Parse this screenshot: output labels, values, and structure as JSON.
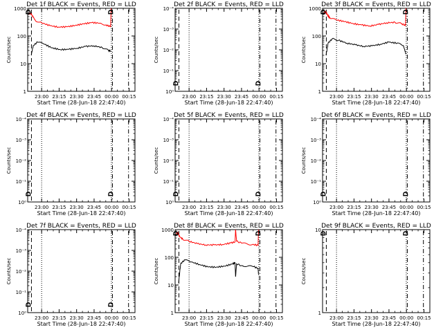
{
  "chart_data": [
    {
      "type": "line",
      "title": "Det 1f BLACK = Events, RED = LLD",
      "ylabel": "Counts/sec",
      "xlabel": "Start Time (28-Jun-18 22:47:40)",
      "y_scale": "log",
      "ytick_labels": [
        "1",
        "10",
        "100",
        "1000"
      ],
      "ytick_values": [
        1,
        10,
        100,
        1000
      ],
      "xtick_labels": [
        "23:00",
        "23:15",
        "23:30",
        "23:45",
        "00:00",
        "00:15"
      ],
      "has_data": true,
      "markers": [
        {
          "label": "D",
          "side": "top",
          "pos": 0.0
        },
        {
          "label": "D",
          "side": "top",
          "pos": 0.78
        }
      ],
      "vlines": [
        {
          "style": "dash",
          "pos": 0.035
        },
        {
          "style": "dotted",
          "pos": 0.13
        },
        {
          "style": "dotted",
          "pos": 0.78
        },
        {
          "style": "dashdot",
          "pos": 0.79
        },
        {
          "style": "dashdot",
          "pos": 0.94
        }
      ],
      "series": [
        {
          "name": "LLD",
          "color": "#ff0000",
          "points": [
            [
              0.0,
              600
            ],
            [
              0.01,
              700
            ],
            [
              0.03,
              560
            ],
            [
              0.06,
              360
            ],
            [
              0.12,
              300
            ],
            [
              0.2,
              235
            ],
            [
              0.28,
              210
            ],
            [
              0.36,
              215
            ],
            [
              0.44,
              240
            ],
            [
              0.52,
              275
            ],
            [
              0.6,
              305
            ],
            [
              0.68,
              290
            ],
            [
              0.74,
              250
            ],
            [
              0.78,
              215
            ],
            [
              0.785,
              1000
            ]
          ]
        },
        {
          "name": "Events",
          "color": "#000000",
          "points": [
            [
              0.02,
              20
            ],
            [
              0.04,
              45
            ],
            [
              0.08,
              60
            ],
            [
              0.14,
              52
            ],
            [
              0.22,
              37
            ],
            [
              0.3,
              32
            ],
            [
              0.38,
              33
            ],
            [
              0.46,
              36
            ],
            [
              0.54,
              42
            ],
            [
              0.62,
              44
            ],
            [
              0.7,
              38
            ],
            [
              0.76,
              30
            ],
            [
              0.785,
              28
            ]
          ]
        }
      ]
    },
    {
      "type": "line",
      "title": "Det 2f BLACK = Events, RED = LLD",
      "ylabel": "Counts/sec",
      "xlabel": "Start Time (28-Jun-18 22:47:40)",
      "y_scale": "log",
      "ytick_labels": [
        "10⁰",
        "10⁻¹",
        "10⁻²",
        "10⁻³",
        "10⁻⁴"
      ],
      "xtick_labels": [
        "23:00",
        "23:15",
        "23:30",
        "23:45",
        "00:00",
        "00:15"
      ],
      "has_data": false,
      "markers": [
        {
          "label": "D",
          "side": "bottom",
          "pos": 0.0
        },
        {
          "label": "D",
          "side": "bottom",
          "pos": 0.78
        }
      ],
      "vlines": [
        {
          "style": "dash",
          "pos": 0.035
        },
        {
          "style": "dotted",
          "pos": 0.13
        },
        {
          "style": "dotted",
          "pos": 0.78
        },
        {
          "style": "dashdot",
          "pos": 0.79
        },
        {
          "style": "dashdot",
          "pos": 0.94
        }
      ],
      "series": []
    },
    {
      "type": "line",
      "title": "Det 3f BLACK = Events, RED = LLD",
      "ylabel": "Counts/sec",
      "xlabel": "Start Time (28-Jun-18 22:47:40)",
      "y_scale": "log",
      "ytick_labels": [
        "1",
        "10",
        "100",
        "1000"
      ],
      "ytick_values": [
        1,
        10,
        100,
        1000
      ],
      "xtick_labels": [
        "23:00",
        "23:15",
        "23:30",
        "23:45",
        "00:00",
        "00:15"
      ],
      "has_data": true,
      "markers": [
        {
          "label": "D",
          "side": "top",
          "pos": 0.0
        },
        {
          "label": "D",
          "side": "top",
          "pos": 0.78
        }
      ],
      "vlines": [
        {
          "style": "dash",
          "pos": 0.035
        },
        {
          "style": "dotted",
          "pos": 0.13
        },
        {
          "style": "dotted",
          "pos": 0.78
        },
        {
          "style": "dashdot",
          "pos": 0.79
        },
        {
          "style": "dashdot",
          "pos": 0.94
        }
      ],
      "series": [
        {
          "name": "LLD",
          "color": "#ff0000",
          "points": [
            [
              0.0,
              650
            ],
            [
              0.01,
              800
            ],
            [
              0.03,
              600
            ],
            [
              0.06,
              430
            ],
            [
              0.12,
              380
            ],
            [
              0.2,
              330
            ],
            [
              0.28,
              280
            ],
            [
              0.36,
              250
            ],
            [
              0.44,
              230
            ],
            [
              0.52,
              260
            ],
            [
              0.6,
              300
            ],
            [
              0.68,
              310
            ],
            [
              0.74,
              280
            ],
            [
              0.78,
              240
            ],
            [
              0.785,
              1000
            ]
          ]
        },
        {
          "name": "Events",
          "color": "#000000",
          "points": [
            [
              0.02,
              20
            ],
            [
              0.04,
              55
            ],
            [
              0.08,
              80
            ],
            [
              0.14,
              70
            ],
            [
              0.22,
              55
            ],
            [
              0.3,
              48
            ],
            [
              0.38,
              42
            ],
            [
              0.46,
              44
            ],
            [
              0.54,
              50
            ],
            [
              0.62,
              60
            ],
            [
              0.7,
              55
            ],
            [
              0.76,
              45
            ],
            [
              0.785,
              22
            ]
          ]
        }
      ]
    },
    {
      "type": "line",
      "title": "Det 4f BLACK = Events, RED = LLD",
      "ylabel": "Counts/sec",
      "xlabel": "Start Time (28-Jun-18 22:47:40)",
      "y_scale": "log",
      "ytick_labels": [
        "10⁰",
        "10⁻¹",
        "10⁻²",
        "10⁻³",
        "10⁻⁴"
      ],
      "xtick_labels": [
        "23:00",
        "23:15",
        "23:30",
        "23:45",
        "00:00",
        "00:15"
      ],
      "has_data": false,
      "markers": [
        {
          "label": "D",
          "side": "bottom",
          "pos": 0.0
        },
        {
          "label": "D",
          "side": "bottom",
          "pos": 0.78
        }
      ],
      "vlines": [
        {
          "style": "dash",
          "pos": 0.035
        },
        {
          "style": "dotted",
          "pos": 0.13
        },
        {
          "style": "dotted",
          "pos": 0.78
        },
        {
          "style": "dashdot",
          "pos": 0.79
        },
        {
          "style": "dashdot",
          "pos": 0.94
        }
      ],
      "series": []
    },
    {
      "type": "line",
      "title": "Det 5f BLACK = Events, RED = LLD",
      "ylabel": "Counts/sec",
      "xlabel": "Start Time (28-Jun-18 22:47:40)",
      "y_scale": "log",
      "ytick_labels": [
        "10⁰",
        "10⁻¹",
        "10⁻²",
        "10⁻³",
        "10⁻⁴"
      ],
      "xtick_labels": [
        "23:00",
        "23:15",
        "23:30",
        "23:45",
        "00:00",
        "00:15"
      ],
      "has_data": false,
      "markers": [
        {
          "label": "D",
          "side": "bottom",
          "pos": 0.0
        },
        {
          "label": "D",
          "side": "bottom",
          "pos": 0.78
        }
      ],
      "vlines": [
        {
          "style": "dash",
          "pos": 0.035
        },
        {
          "style": "dotted",
          "pos": 0.13
        },
        {
          "style": "dotted",
          "pos": 0.78
        },
        {
          "style": "dashdot",
          "pos": 0.79
        },
        {
          "style": "dashdot",
          "pos": 0.94
        }
      ],
      "series": []
    },
    {
      "type": "line",
      "title": "Det 6f BLACK = Events, RED = LLD",
      "ylabel": "Counts/sec",
      "xlabel": "Start Time (28-Jun-18 22:47:40)",
      "y_scale": "log",
      "ytick_labels": [
        "10⁰",
        "10⁻¹",
        "10⁻²",
        "10⁻³",
        "10⁻⁴"
      ],
      "xtick_labels": [
        "23:00",
        "23:15",
        "23:30",
        "23:45",
        "00:00",
        "00:15"
      ],
      "has_data": false,
      "markers": [
        {
          "label": "D",
          "side": "bottom",
          "pos": 0.0
        },
        {
          "label": "D",
          "side": "bottom",
          "pos": 0.78
        }
      ],
      "vlines": [
        {
          "style": "dash",
          "pos": 0.035
        },
        {
          "style": "dotted",
          "pos": 0.13
        },
        {
          "style": "dotted",
          "pos": 0.78
        },
        {
          "style": "dashdot",
          "pos": 0.79
        },
        {
          "style": "dashdot",
          "pos": 0.94
        }
      ],
      "series": []
    },
    {
      "type": "line",
      "title": "Det 7f BLACK = Events, RED = LLD",
      "ylabel": "Counts/sec",
      "xlabel": "Start Time (28-Jun-18 22:47:40)",
      "y_scale": "log",
      "ytick_labels": [
        "10⁰",
        "10⁻¹",
        "10⁻²",
        "10⁻³",
        "10⁻⁴"
      ],
      "xtick_labels": [
        "23:00",
        "23:15",
        "23:30",
        "23:45",
        "00:00",
        "00:15"
      ],
      "has_data": false,
      "markers": [
        {
          "label": "D",
          "side": "bottom",
          "pos": 0.0
        },
        {
          "label": "D",
          "side": "bottom",
          "pos": 0.78
        }
      ],
      "vlines": [
        {
          "style": "dash",
          "pos": 0.035
        },
        {
          "style": "dotted",
          "pos": 0.13
        },
        {
          "style": "dotted",
          "pos": 0.78
        },
        {
          "style": "dashdot",
          "pos": 0.79
        },
        {
          "style": "dashdot",
          "pos": 0.94
        }
      ],
      "series": []
    },
    {
      "type": "line",
      "title": "Det 8f BLACK = Events, RED = LLD",
      "ylabel": "Counts/sec",
      "xlabel": "Start Time (28-Jun-18 22:47:40)",
      "y_scale": "log",
      "ytick_labels": [
        "1",
        "10",
        "100",
        "1000"
      ],
      "ytick_values": [
        1,
        10,
        100,
        1000
      ],
      "xtick_labels": [
        "23:00",
        "23:15",
        "23:30",
        "23:45",
        "00:00",
        "00:15"
      ],
      "has_data": true,
      "markers": [
        {
          "label": "D",
          "side": "top",
          "pos": 0.0
        },
        {
          "label": "D",
          "side": "top",
          "pos": 0.78
        }
      ],
      "vlines": [
        {
          "style": "dash",
          "pos": 0.035
        },
        {
          "style": "dotted",
          "pos": 0.13
        },
        {
          "style": "dotted",
          "pos": 0.78
        },
        {
          "style": "dashdot",
          "pos": 0.79
        },
        {
          "style": "dashdot",
          "pos": 0.94
        }
      ],
      "series": [
        {
          "name": "LLD",
          "color": "#ff0000",
          "points": [
            [
              0.0,
              700
            ],
            [
              0.01,
              800
            ],
            [
              0.03,
              560
            ],
            [
              0.06,
              450
            ],
            [
              0.12,
              380
            ],
            [
              0.2,
              310
            ],
            [
              0.28,
              280
            ],
            [
              0.36,
              280
            ],
            [
              0.44,
              290
            ],
            [
              0.52,
              330
            ],
            [
              0.56,
              360
            ],
            [
              0.565,
              1000
            ],
            [
              0.575,
              380
            ],
            [
              0.62,
              330
            ],
            [
              0.68,
              300
            ],
            [
              0.74,
              290
            ],
            [
              0.78,
              270
            ],
            [
              0.785,
              1000
            ]
          ]
        },
        {
          "name": "Events",
          "color": "#000000",
          "points": [
            [
              0.02,
              12
            ],
            [
              0.04,
              60
            ],
            [
              0.08,
              80
            ],
            [
              0.14,
              68
            ],
            [
              0.22,
              55
            ],
            [
              0.3,
              45
            ],
            [
              0.38,
              44
            ],
            [
              0.46,
              48
            ],
            [
              0.54,
              58
            ],
            [
              0.56,
              64
            ],
            [
              0.565,
              20
            ],
            [
              0.575,
              58
            ],
            [
              0.62,
              50
            ],
            [
              0.68,
              48
            ],
            [
              0.74,
              46
            ],
            [
              0.78,
              40
            ],
            [
              0.785,
              24
            ]
          ]
        }
      ]
    },
    {
      "type": "line",
      "title": "Det 9f BLACK = Events, RED = LLD",
      "ylabel": "Counts/sec",
      "xlabel": "Start Time (28-Jun-18 22:47:40)",
      "y_scale": "log",
      "ytick_labels": [
        "1",
        "10"
      ],
      "ytick_values": [
        1,
        10
      ],
      "xtick_labels": [
        "23:00",
        "23:15",
        "23:30",
        "23:45",
        "00:00",
        "00:15"
      ],
      "has_data": false,
      "markers": [
        {
          "label": "D",
          "side": "top",
          "pos": 0.0
        },
        {
          "label": "D",
          "side": "top",
          "pos": 0.78
        }
      ],
      "vlines": [
        {
          "style": "dash",
          "pos": 0.035
        },
        {
          "style": "dotted",
          "pos": 0.13
        },
        {
          "style": "dotted",
          "pos": 0.78
        },
        {
          "style": "dashdot",
          "pos": 0.79
        },
        {
          "style": "dashdot",
          "pos": 0.94
        }
      ],
      "series": []
    }
  ]
}
